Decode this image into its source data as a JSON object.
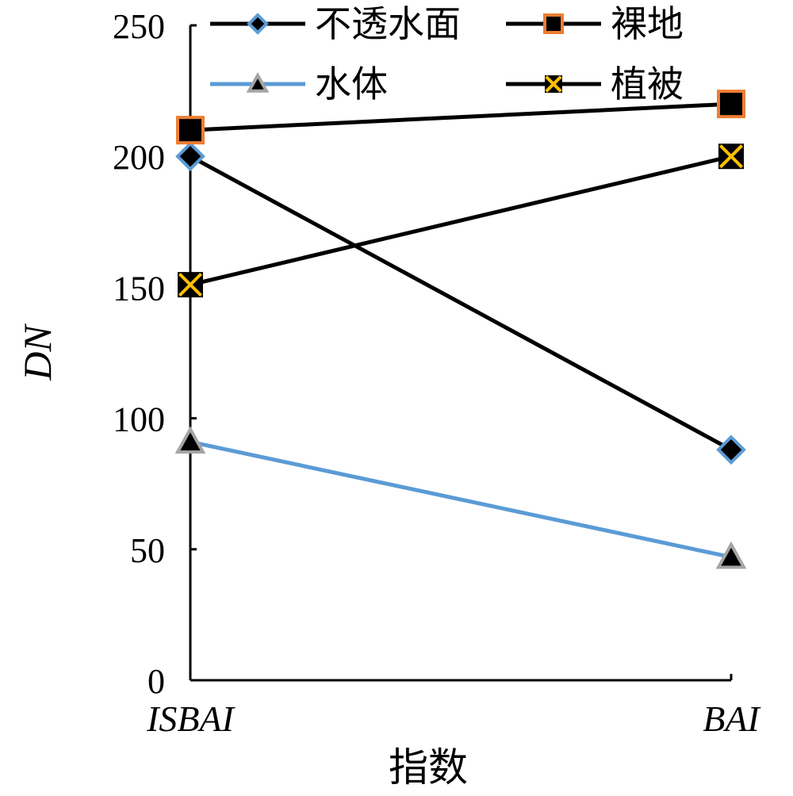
{
  "chart_data": {
    "type": "line",
    "categories": [
      "ISBAI",
      "BAI"
    ],
    "xlabel": "指数",
    "ylabel": "DN",
    "ylim": [
      0,
      250
    ],
    "yticks": [
      0,
      50,
      100,
      150,
      200,
      250
    ],
    "grid": false,
    "legend_position": "top",
    "series": [
      {
        "name": "不透水面",
        "values": [
          200,
          88
        ],
        "line_color": "#000000",
        "marker": "diamond",
        "marker_fill": "#000000",
        "marker_edge": "#5B9BD5"
      },
      {
        "name": "裸地",
        "values": [
          210,
          220
        ],
        "line_color": "#000000",
        "marker": "square",
        "marker_fill": "#000000",
        "marker_edge": "#ED7D31"
      },
      {
        "name": "水体",
        "values": [
          91,
          47
        ],
        "line_color": "#5B9BD5",
        "marker": "triangle",
        "marker_fill": "#000000",
        "marker_edge": "#A5A5A5"
      },
      {
        "name": "植被",
        "values": [
          151,
          200
        ],
        "line_color": "#000000",
        "marker": "x-square",
        "marker_fill": "#000000",
        "marker_edge": "#FFC000"
      }
    ]
  }
}
